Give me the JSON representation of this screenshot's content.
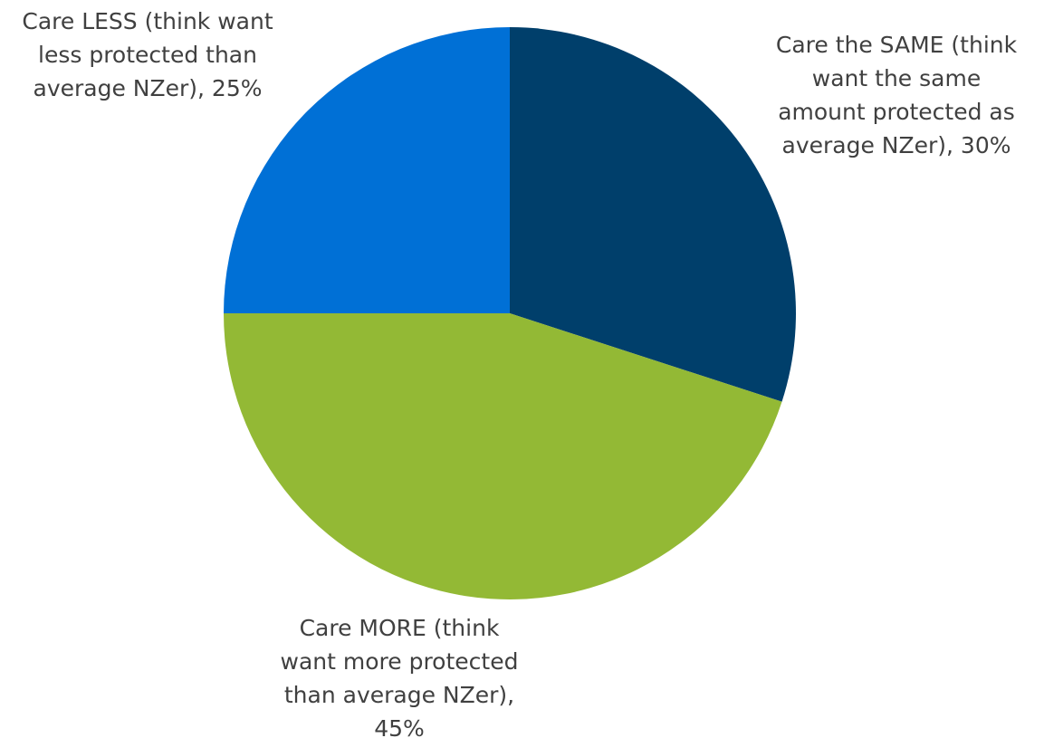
{
  "chart_data": {
    "type": "pie",
    "title": "",
    "start_angle_deg": 0,
    "direction": "clockwise",
    "slices": [
      {
        "label_lines": [
          "Care the SAME (think",
          "want the same",
          "amount protected as",
          "average NZer), 30%"
        ],
        "name": "Care the SAME (think want the same amount protected as average NZer)",
        "value": 30,
        "color": "#003F6B"
      },
      {
        "label_lines": [
          "Care MORE (think",
          "want more protected",
          "than average NZer),",
          "45%"
        ],
        "name": "Care MORE (think want more protected than average NZer)",
        "value": 45,
        "color": "#93B935"
      },
      {
        "label_lines": [
          "Care LESS (think want",
          "less protected than",
          "average NZer), 25%"
        ],
        "name": "Care LESS (think want less protected than average NZer)",
        "value": 25,
        "color": "#0070D6"
      }
    ]
  }
}
